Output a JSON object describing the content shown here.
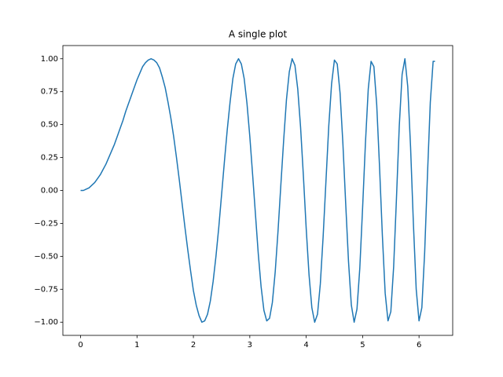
{
  "chart_data": {
    "type": "line",
    "title": "A single plot",
    "color": "#1f77b4",
    "x": [
      0,
      0.05,
      0.1,
      0.15,
      0.2,
      0.25,
      0.3,
      0.35,
      0.4,
      0.45,
      0.5,
      0.55,
      0.6,
      0.65,
      0.7,
      0.75,
      0.8,
      0.85,
      0.9,
      0.95,
      1.0,
      1.05,
      1.1,
      1.15,
      1.2,
      1.25,
      1.3,
      1.35,
      1.4,
      1.45,
      1.5,
      1.55,
      1.6,
      1.65,
      1.7,
      1.75,
      1.8,
      1.85,
      1.9,
      1.95,
      2.0,
      2.05,
      2.1,
      2.15,
      2.2,
      2.25,
      2.3,
      2.35,
      2.4,
      2.45,
      2.5,
      2.55,
      2.6,
      2.65,
      2.7,
      2.75,
      2.8,
      2.85,
      2.9,
      2.95,
      3.0,
      3.05,
      3.1,
      3.15,
      3.2,
      3.25,
      3.3,
      3.35,
      3.4,
      3.45,
      3.5,
      3.55,
      3.6,
      3.65,
      3.7,
      3.75,
      3.8,
      3.85,
      3.9,
      3.95,
      4.0,
      4.05,
      4.1,
      4.15,
      4.2,
      4.25,
      4.3,
      4.35,
      4.4,
      4.45,
      4.5,
      4.55,
      4.6,
      4.65,
      4.7,
      4.75,
      4.8,
      4.85,
      4.9,
      4.95,
      5.0,
      5.05,
      5.1,
      5.15,
      5.2,
      5.25,
      5.3,
      5.35,
      5.4,
      5.45,
      5.5,
      5.55,
      5.6,
      5.65,
      5.7,
      5.75,
      5.8,
      5.85,
      5.9,
      5.95,
      6.0,
      6.05,
      6.1,
      6.15,
      6.2,
      6.25,
      6.2832
    ],
    "values": [
      0,
      0.0,
      0.01,
      0.02,
      0.04,
      0.06,
      0.09,
      0.12,
      0.16,
      0.2,
      0.25,
      0.3,
      0.35,
      0.41,
      0.47,
      0.53,
      0.6,
      0.66,
      0.72,
      0.78,
      0.84,
      0.89,
      0.94,
      0.97,
      0.99,
      1.0,
      0.99,
      0.97,
      0.93,
      0.86,
      0.78,
      0.67,
      0.55,
      0.41,
      0.25,
      0.08,
      -0.1,
      -0.28,
      -0.45,
      -0.61,
      -0.76,
      -0.87,
      -0.95,
      -1.0,
      -0.99,
      -0.94,
      -0.84,
      -0.69,
      -0.5,
      -0.28,
      -0.03,
      0.22,
      0.46,
      0.67,
      0.85,
      0.96,
      1.0,
      0.96,
      0.85,
      0.66,
      0.41,
      0.12,
      -0.18,
      -0.48,
      -0.73,
      -0.91,
      -0.99,
      -0.97,
      -0.85,
      -0.62,
      -0.31,
      0.04,
      0.38,
      0.69,
      0.9,
      1.0,
      0.95,
      0.77,
      0.48,
      0.11,
      -0.29,
      -0.64,
      -0.89,
      -1.0,
      -0.94,
      -0.71,
      -0.35,
      0.07,
      0.49,
      0.81,
      0.99,
      0.96,
      0.74,
      0.36,
      -0.1,
      -0.54,
      -0.87,
      -1.0,
      -0.9,
      -0.59,
      -0.13,
      0.36,
      0.77,
      0.98,
      0.94,
      0.65,
      0.18,
      -0.34,
      -0.78,
      -0.99,
      -0.92,
      -0.58,
      -0.06,
      0.49,
      0.88,
      1.0,
      0.79,
      0.33,
      -0.25,
      -0.75,
      -0.99,
      -0.89,
      -0.47,
      0.12,
      0.67,
      0.98,
      0.98
    ],
    "xlim": [
      -0.314,
      6.597
    ],
    "ylim": [
      -1.1,
      1.1
    ],
    "xticks": [
      0,
      1,
      2,
      3,
      4,
      5,
      6
    ],
    "yticks": [
      {
        "value": -1,
        "label": "−1.00"
      },
      {
        "value": -0.75,
        "label": "−0.75"
      },
      {
        "value": -0.5,
        "label": "−0.50"
      },
      {
        "value": -0.25,
        "label": "−0.25"
      },
      {
        "value": 0,
        "label": "0.00"
      },
      {
        "value": 0.25,
        "label": "0.25"
      },
      {
        "value": 0.5,
        "label": "0.50"
      },
      {
        "value": 0.75,
        "label": "0.75"
      },
      {
        "value": 1,
        "label": "1.00"
      }
    ]
  }
}
